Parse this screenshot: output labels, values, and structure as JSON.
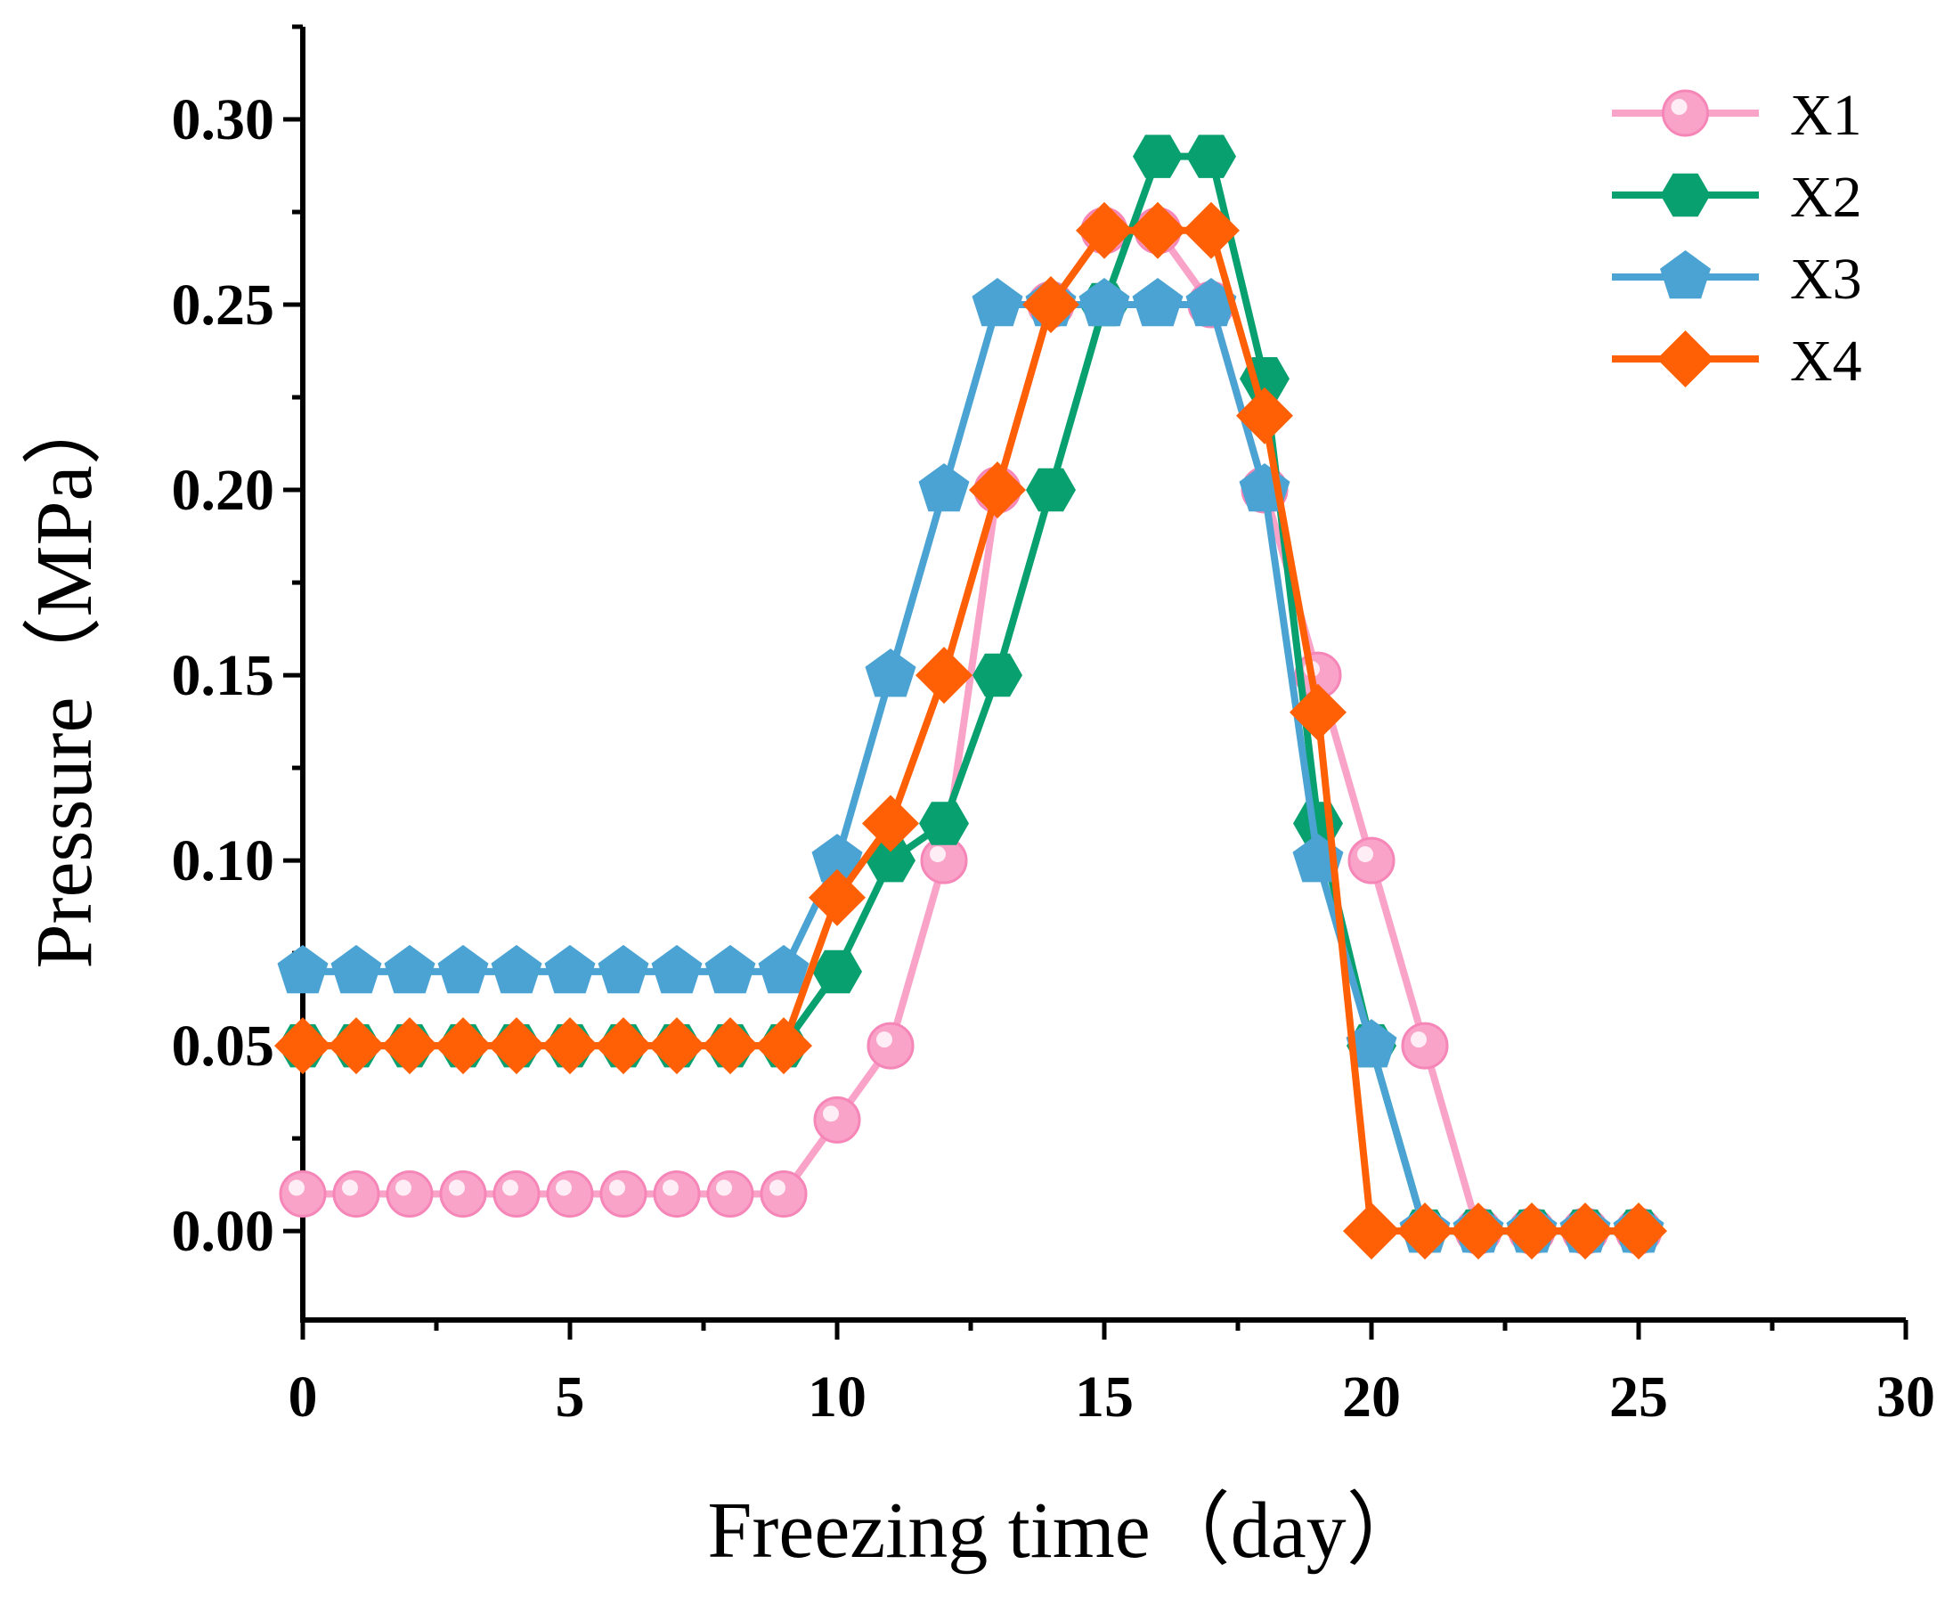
{
  "chart_data": {
    "type": "line",
    "title": "",
    "xlabel": "Freezing time（day）",
    "ylabel": "Pressure（MPa）",
    "xlim": [
      0,
      30
    ],
    "ylim": [
      -0.024,
      0.325
    ],
    "xticks": [
      "0",
      "5",
      "10",
      "15",
      "20",
      "25",
      "30"
    ],
    "yticks": [
      "0.00",
      "0.05",
      "0.10",
      "0.15",
      "0.20",
      "0.25",
      "0.30"
    ],
    "grid": false,
    "legend_position": "top-right",
    "series": [
      {
        "name": "X1",
        "color": "#F9A3C8",
        "marker": "circle",
        "x": [
          0,
          1,
          2,
          3,
          4,
          5,
          6,
          7,
          8,
          9,
          10,
          11,
          12,
          13,
          14,
          15,
          16,
          17,
          18,
          19,
          20,
          21,
          22,
          23,
          24,
          25
        ],
        "values": [
          0.01,
          0.01,
          0.01,
          0.01,
          0.01,
          0.01,
          0.01,
          0.01,
          0.01,
          0.01,
          0.03,
          0.05,
          0.1,
          0.2,
          0.25,
          0.27,
          0.27,
          0.25,
          0.2,
          0.15,
          0.1,
          0.05,
          0.0,
          0.0,
          0.0,
          0.0
        ]
      },
      {
        "name": "X2",
        "color": "#07A06E",
        "marker": "hexagon",
        "x": [
          0,
          1,
          2,
          3,
          4,
          5,
          6,
          7,
          8,
          9,
          10,
          11,
          12,
          13,
          14,
          15,
          16,
          17,
          18,
          19,
          20,
          21,
          22,
          23,
          24,
          25
        ],
        "values": [
          0.05,
          0.05,
          0.05,
          0.05,
          0.05,
          0.05,
          0.05,
          0.05,
          0.05,
          0.05,
          0.07,
          0.1,
          0.11,
          0.15,
          0.2,
          0.25,
          0.29,
          0.29,
          0.23,
          0.11,
          0.05,
          0.0,
          0.0,
          0.0,
          0.0,
          0.0
        ]
      },
      {
        "name": "X3",
        "color": "#4BA3D3",
        "marker": "pentagon",
        "x": [
          0,
          1,
          2,
          3,
          4,
          5,
          6,
          7,
          8,
          9,
          10,
          11,
          12,
          13,
          14,
          15,
          16,
          17,
          18,
          19,
          20,
          21,
          22,
          23,
          24,
          25
        ],
        "values": [
          0.07,
          0.07,
          0.07,
          0.07,
          0.07,
          0.07,
          0.07,
          0.07,
          0.07,
          0.07,
          0.1,
          0.15,
          0.2,
          0.25,
          0.25,
          0.25,
          0.25,
          0.25,
          0.2,
          0.1,
          0.05,
          0.0,
          0.0,
          0.0,
          0.0,
          0.0
        ]
      },
      {
        "name": "X4",
        "color": "#FF5F05",
        "marker": "diamond",
        "x": [
          0,
          1,
          2,
          3,
          4,
          5,
          6,
          7,
          8,
          9,
          10,
          11,
          12,
          13,
          14,
          15,
          16,
          17,
          18,
          19,
          20,
          21,
          22,
          23,
          24,
          25
        ],
        "values": [
          0.05,
          0.05,
          0.05,
          0.05,
          0.05,
          0.05,
          0.05,
          0.05,
          0.05,
          0.05,
          0.09,
          0.11,
          0.15,
          0.2,
          0.25,
          0.27,
          0.27,
          0.27,
          0.22,
          0.14,
          0.0,
          0.0,
          0.0,
          0.0,
          0.0,
          0.0
        ]
      }
    ]
  }
}
